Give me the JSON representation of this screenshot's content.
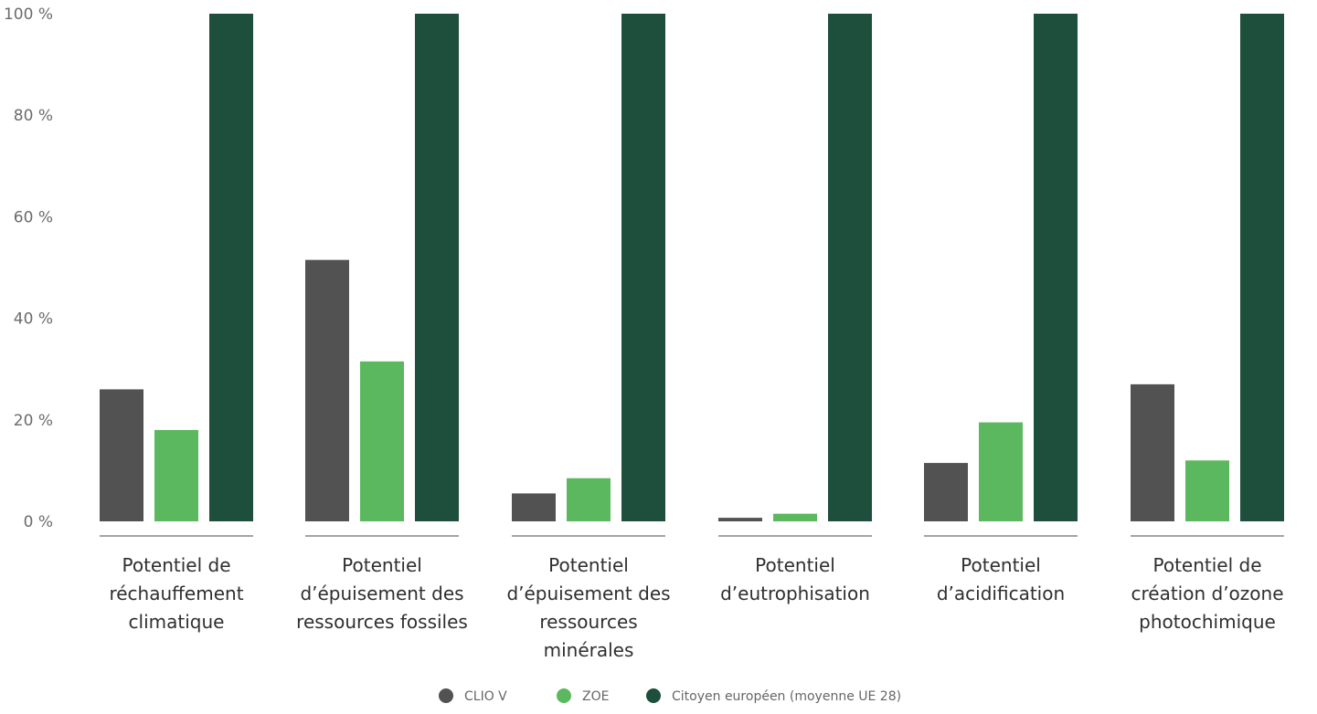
{
  "chart_data": {
    "type": "bar",
    "title": "",
    "xlabel": "",
    "ylabel": "",
    "ylim": [
      0,
      100
    ],
    "y_ticks": [
      {
        "value": 0,
        "label": "0 %"
      },
      {
        "value": 20,
        "label": "20 %"
      },
      {
        "value": 40,
        "label": "40 %"
      },
      {
        "value": 60,
        "label": "60 %"
      },
      {
        "value": 80,
        "label": "80 %"
      },
      {
        "value": 100,
        "label": "100 %"
      }
    ],
    "categories": [
      [
        "Potentiel de",
        "réchauffement",
        "climatique"
      ],
      [
        "Potentiel",
        "d’épuisement des",
        "ressources fossiles"
      ],
      [
        "Potentiel",
        "d’épuisement des",
        "ressources",
        "minérales"
      ],
      [
        "Potentiel",
        "d’eutrophisation"
      ],
      [
        "Potentiel",
        "d’acidification"
      ],
      [
        "Potentiel de",
        "création d’ozone",
        "photochimique"
      ]
    ],
    "series": [
      {
        "name": "CLIO V",
        "color": "#525252",
        "values": [
          26,
          51.5,
          5.5,
          0.7,
          11.5,
          27
        ]
      },
      {
        "name": "ZOE",
        "color": "#5cb85f",
        "values": [
          18,
          31.5,
          8.5,
          1.5,
          19.5,
          12
        ]
      },
      {
        "name": "Citoyen européen (moyenne UE 28)",
        "color": "#1d4f3c",
        "values": [
          100,
          100,
          100,
          100,
          100,
          100
        ]
      }
    ],
    "grid": false,
    "legend_position": "bottom-center"
  }
}
